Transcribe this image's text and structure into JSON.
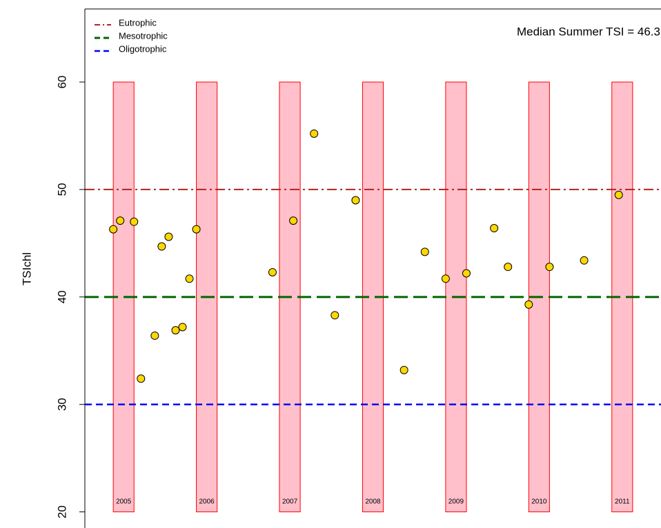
{
  "chart_data": {
    "type": "scatter",
    "ylabel": "TSIchl",
    "annotation": "Median Summer TSI = 46.3",
    "x": [
      1,
      2,
      4,
      5,
      7,
      8,
      9,
      10,
      11,
      12,
      13,
      24,
      27,
      30,
      33,
      36,
      43,
      46,
      49,
      52,
      56,
      58,
      61,
      64,
      69,
      74
    ],
    "values": [
      46.3,
      47.1,
      47.0,
      32.4,
      36.4,
      44.7,
      45.6,
      36.9,
      37.2,
      41.7,
      46.3,
      42.3,
      47.1,
      55.2,
      38.3,
      49.0,
      33.2,
      44.2,
      41.7,
      42.2,
      46.4,
      42.8,
      39.3,
      42.8,
      43.4,
      49.5
    ],
    "color": "#ffd700",
    "xlim": [
      -3.1,
      80.1
    ],
    "ylim": [
      18.5,
      66.8
    ],
    "yticks": [
      20,
      30,
      40,
      50,
      60
    ],
    "bands": {
      "labels": [
        "2005",
        "2006",
        "2007",
        "2008",
        "2009",
        "2010",
        "2011"
      ],
      "x0": [
        1,
        13,
        25,
        37,
        49,
        61,
        73
      ],
      "x1": [
        4,
        16,
        28,
        40,
        52,
        64,
        76
      ],
      "ymin": 20,
      "ymax": 60,
      "fill": "#ffc0cb",
      "stroke": "#ff0000"
    },
    "reference_lines": [
      {
        "name": "Eutrophic",
        "value": 50,
        "color": "#b22222",
        "style": "dotdash"
      },
      {
        "name": "Mesotrophic",
        "value": 40,
        "color": "#006400",
        "style": "longdash"
      },
      {
        "name": "Oligotrophic",
        "value": 30,
        "color": "#0000ff",
        "style": "dashed"
      }
    ],
    "legend": "top-left"
  }
}
